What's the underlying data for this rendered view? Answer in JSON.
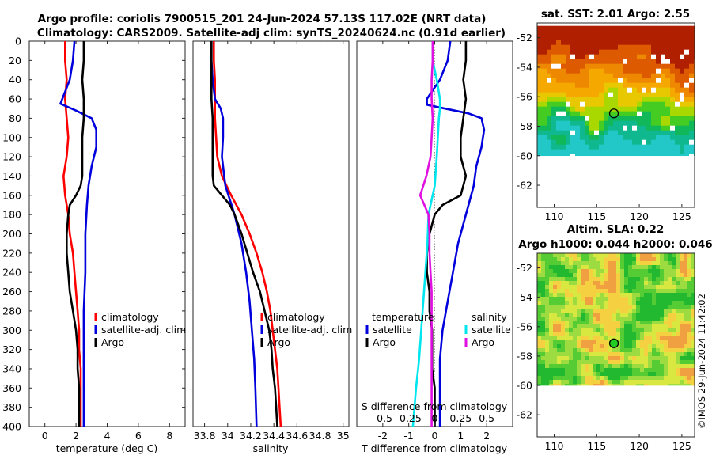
{
  "figure": {
    "title_line1": "Argo profile: coriolis 7900515_201 24-Jun-2024 57.13S 117.02E (NRT data)",
    "title_line2": "Climatology: CARS2009. Satellite-adj clim: synTS_20240624.nc (0.91d earlier)",
    "stamp": "©IMOS 29-Jun-2024 11:42:02"
  },
  "colors": {
    "climatology": "#ff0000",
    "satellite": "#0000dd",
    "argo": "#000000",
    "cyan": "#00e5ee",
    "magenta": "#e010e0"
  },
  "panels": {
    "temperature": {
      "xlabel": "temperature (deg C)",
      "xticks": [
        "0",
        "2",
        "4",
        "6",
        "8"
      ],
      "legend": [
        "climatology",
        "satellite-adj. clim",
        "Argo"
      ]
    },
    "salinity": {
      "xlabel": "salinity",
      "xticks": [
        "33.8",
        "34",
        "34.2",
        "34.4",
        "34.6",
        "34.8",
        "35"
      ],
      "legend": [
        "climatology",
        "satellite-adj. clim",
        "Argo"
      ]
    },
    "difference": {
      "xlabel": "T difference from climatology",
      "xticks": [
        "-2",
        "-1",
        "0",
        "1",
        "2"
      ],
      "top_label": "S difference from climatology",
      "top_ticks": [
        "-0.5",
        "-0.25",
        "0",
        "0.25",
        "0.5"
      ],
      "legend_t_title": "temperature",
      "legend_s_title": "salinity",
      "legend_t": [
        "satellite",
        "Argo"
      ],
      "legend_s": [
        "satellite",
        "Argo"
      ]
    },
    "sst_map": {
      "title": "sat. SST: 2.01 Argo: 2.55",
      "xticks": [
        "110",
        "115",
        "120",
        "125"
      ],
      "yticks": [
        "-52",
        "-54",
        "-56",
        "-58",
        "-60",
        "-62"
      ]
    },
    "sla_map": {
      "title1": "Altim. SLA: 0.22",
      "title2": "Argo h1000: 0.044 h2000: 0.046",
      "xticks": [
        "110",
        "115",
        "120",
        "125"
      ],
      "yticks": [
        "-52",
        "-54",
        "-56",
        "-58",
        "-60",
        "-62"
      ]
    }
  },
  "depth_axis": {
    "ylabel": "",
    "ticks": [
      "0",
      "20",
      "40",
      "60",
      "80",
      "100",
      "120",
      "140",
      "160",
      "180",
      "200",
      "220",
      "240",
      "260",
      "280",
      "300",
      "320",
      "340",
      "360",
      "380",
      "400"
    ]
  },
  "chart_data": [
    {
      "type": "line",
      "title": "temperature profile",
      "xlabel": "temperature (deg C)",
      "xlim": [
        -1,
        9
      ],
      "ylim": [
        400,
        0
      ],
      "series": [
        {
          "name": "climatology",
          "points": [
            [
              1.3,
              0
            ],
            [
              1.3,
              20
            ],
            [
              1.4,
              40
            ],
            [
              1.3,
              60
            ],
            [
              1.4,
              80
            ],
            [
              1.5,
              100
            ],
            [
              1.4,
              120
            ],
            [
              1.2,
              140
            ],
            [
              1.3,
              160
            ],
            [
              1.5,
              180
            ],
            [
              1.6,
              200
            ],
            [
              1.8,
              220
            ],
            [
              1.9,
              240
            ],
            [
              2.0,
              260
            ],
            [
              2.1,
              280
            ],
            [
              2.2,
              300
            ],
            [
              2.2,
              320
            ],
            [
              2.3,
              340
            ],
            [
              2.3,
              360
            ],
            [
              2.3,
              380
            ],
            [
              2.3,
              400
            ]
          ]
        },
        {
          "name": "satellite-adj. clim",
          "points": [
            [
              1.9,
              0
            ],
            [
              1.8,
              20
            ],
            [
              1.6,
              40
            ],
            [
              1.0,
              65
            ],
            [
              2.0,
              72
            ],
            [
              3.0,
              80
            ],
            [
              3.3,
              92
            ],
            [
              3.3,
              110
            ],
            [
              3.0,
              130
            ],
            [
              2.8,
              150
            ],
            [
              2.7,
              170
            ],
            [
              2.6,
              200
            ],
            [
              2.6,
              240
            ],
            [
              2.5,
              280
            ],
            [
              2.5,
              320
            ],
            [
              2.5,
              360
            ],
            [
              2.5,
              400
            ]
          ]
        },
        {
          "name": "Argo",
          "points": [
            [
              2.5,
              0
            ],
            [
              2.5,
              20
            ],
            [
              2.4,
              40
            ],
            [
              2.5,
              60
            ],
            [
              2.5,
              80
            ],
            [
              2.4,
              100
            ],
            [
              2.4,
              120
            ],
            [
              2.4,
              140
            ],
            [
              2.3,
              150
            ],
            [
              2.0,
              160
            ],
            [
              1.6,
              170
            ],
            [
              1.5,
              180
            ],
            [
              1.4,
              200
            ],
            [
              1.4,
              220
            ],
            [
              1.5,
              240
            ],
            [
              1.6,
              260
            ],
            [
              1.8,
              280
            ],
            [
              2.0,
              300
            ],
            [
              2.1,
              320
            ],
            [
              2.1,
              340
            ],
            [
              2.2,
              360
            ],
            [
              2.2,
              380
            ],
            [
              2.2,
              400
            ]
          ]
        }
      ]
    },
    {
      "type": "line",
      "title": "salinity profile",
      "xlabel": "salinity",
      "xlim": [
        33.7,
        35.05
      ],
      "ylim": [
        400,
        0
      ],
      "series": [
        {
          "name": "climatology",
          "points": [
            [
              33.88,
              0
            ],
            [
              33.88,
              20
            ],
            [
              33.89,
              40
            ],
            [
              33.89,
              60
            ],
            [
              33.89,
              80
            ],
            [
              33.9,
              100
            ],
            [
              33.91,
              120
            ],
            [
              33.95,
              140
            ],
            [
              34.03,
              160
            ],
            [
              34.12,
              180
            ],
            [
              34.19,
              200
            ],
            [
              34.25,
              220
            ],
            [
              34.3,
              240
            ],
            [
              34.34,
              260
            ],
            [
              34.37,
              280
            ],
            [
              34.39,
              300
            ],
            [
              34.41,
              320
            ],
            [
              34.43,
              340
            ],
            [
              34.44,
              360
            ],
            [
              34.45,
              380
            ],
            [
              34.46,
              400
            ]
          ]
        },
        {
          "name": "satellite-adj. clim",
          "points": [
            [
              33.86,
              0
            ],
            [
              33.86,
              20
            ],
            [
              33.87,
              40
            ],
            [
              33.89,
              60
            ],
            [
              33.94,
              70
            ],
            [
              33.96,
              80
            ],
            [
              33.96,
              100
            ],
            [
              33.95,
              120
            ],
            [
              33.98,
              150
            ],
            [
              34.06,
              180
            ],
            [
              34.12,
              210
            ],
            [
              34.16,
              240
            ],
            [
              34.19,
              270
            ],
            [
              34.21,
              300
            ],
            [
              34.23,
              330
            ],
            [
              34.24,
              360
            ],
            [
              34.25,
              400
            ]
          ]
        },
        {
          "name": "Argo",
          "points": [
            [
              33.86,
              0
            ],
            [
              33.86,
              20
            ],
            [
              33.86,
              40
            ],
            [
              33.86,
              60
            ],
            [
              33.87,
              80
            ],
            [
              33.87,
              100
            ],
            [
              33.87,
              120
            ],
            [
              33.87,
              140
            ],
            [
              33.88,
              150
            ],
            [
              33.95,
              160
            ],
            [
              34.02,
              170
            ],
            [
              34.06,
              180
            ],
            [
              34.12,
              200
            ],
            [
              34.17,
              220
            ],
            [
              34.22,
              240
            ],
            [
              34.28,
              260
            ],
            [
              34.32,
              280
            ],
            [
              34.36,
              300
            ],
            [
              34.38,
              320
            ],
            [
              34.39,
              340
            ],
            [
              34.41,
              360
            ],
            [
              34.42,
              380
            ],
            [
              34.43,
              400
            ]
          ]
        }
      ]
    },
    {
      "type": "line",
      "title": "difference from climatology",
      "xlabel": "T difference from climatology",
      "x2label": "S difference from climatology",
      "xlim": [
        -3,
        3
      ],
      "x2lim": [
        -0.75,
        0.75
      ],
      "ylim": [
        400,
        0
      ],
      "series": [
        {
          "name": "temperature satellite",
          "axis": "T",
          "points": [
            [
              0.6,
              0
            ],
            [
              0.5,
              20
            ],
            [
              0.2,
              40
            ],
            [
              -0.3,
              60
            ],
            [
              -0.3,
              66
            ],
            [
              0.4,
              70
            ],
            [
              1.3,
              75
            ],
            [
              1.8,
              80
            ],
            [
              1.9,
              92
            ],
            [
              1.8,
              110
            ],
            [
              1.6,
              130
            ],
            [
              1.5,
              150
            ],
            [
              1.3,
              170
            ],
            [
              1.1,
              190
            ],
            [
              0.9,
              210
            ],
            [
              0.7,
              240
            ],
            [
              0.5,
              270
            ],
            [
              0.3,
              300
            ],
            [
              0.2,
              330
            ],
            [
              0.2,
              360
            ],
            [
              0.2,
              400
            ]
          ]
        },
        {
          "name": "temperature Argo",
          "axis": "T",
          "points": [
            [
              1.2,
              0
            ],
            [
              1.2,
              20
            ],
            [
              1.1,
              40
            ],
            [
              1.2,
              60
            ],
            [
              1.1,
              80
            ],
            [
              1.0,
              100
            ],
            [
              1.0,
              120
            ],
            [
              1.2,
              140
            ],
            [
              1.0,
              160
            ],
            [
              0.3,
              170
            ],
            [
              0.0,
              180
            ],
            [
              -0.2,
              200
            ],
            [
              -0.3,
              220
            ],
            [
              -0.3,
              240
            ],
            [
              -0.2,
              260
            ],
            [
              -0.2,
              280
            ],
            [
              -0.1,
              300
            ],
            [
              -0.1,
              320
            ],
            [
              -0.1,
              340
            ],
            [
              0.0,
              360
            ],
            [
              0.0,
              380
            ],
            [
              0.0,
              400
            ]
          ]
        },
        {
          "name": "salinity satellite",
          "axis": "S",
          "points": [
            [
              -0.02,
              0
            ],
            [
              -0.02,
              20
            ],
            [
              0.02,
              40
            ],
            [
              0.05,
              60
            ],
            [
              0.05,
              70
            ],
            [
              0.04,
              80
            ],
            [
              0.03,
              100
            ],
            [
              0.02,
              120
            ],
            [
              0.0,
              150
            ],
            [
              -0.06,
              180
            ],
            [
              -0.07,
              210
            ],
            [
              -0.09,
              240
            ],
            [
              -0.11,
              270
            ],
            [
              -0.13,
              300
            ],
            [
              -0.15,
              330
            ],
            [
              -0.18,
              360
            ],
            [
              -0.21,
              400
            ]
          ]
        },
        {
          "name": "salinity Argo",
          "axis": "S",
          "points": [
            [
              -0.02,
              0
            ],
            [
              -0.02,
              20
            ],
            [
              -0.03,
              40
            ],
            [
              -0.03,
              60
            ],
            [
              -0.02,
              80
            ],
            [
              -0.03,
              100
            ],
            [
              -0.04,
              120
            ],
            [
              -0.08,
              140
            ],
            [
              -0.14,
              160
            ],
            [
              -0.1,
              170
            ],
            [
              -0.06,
              180
            ],
            [
              -0.05,
              200
            ],
            [
              -0.05,
              220
            ],
            [
              -0.04,
              240
            ],
            [
              -0.03,
              260
            ],
            [
              -0.03,
              280
            ],
            [
              -0.03,
              300
            ],
            [
              -0.03,
              320
            ],
            [
              -0.03,
              340
            ],
            [
              -0.03,
              360
            ],
            [
              -0.03,
              380
            ],
            [
              -0.03,
              400
            ]
          ]
        }
      ]
    },
    {
      "type": "heatmap",
      "title": "sat. SST: 2.01 Argo: 2.55",
      "xlim": [
        108,
        126.5
      ],
      "ylim": [
        -63.5,
        -51
      ],
      "argo_position": [
        117.02,
        -57.13
      ],
      "description_values": "SST decreasing southward; values indicated by color"
    },
    {
      "type": "heatmap",
      "title": "Altim. SLA: 0.22",
      "subtitle": "Argo h1000: 0.044 h2000: 0.046",
      "xlim": [
        108,
        126.5
      ],
      "ylim": [
        -63.5,
        -51
      ],
      "argo_position": [
        117.02,
        -57.13
      ]
    }
  ]
}
